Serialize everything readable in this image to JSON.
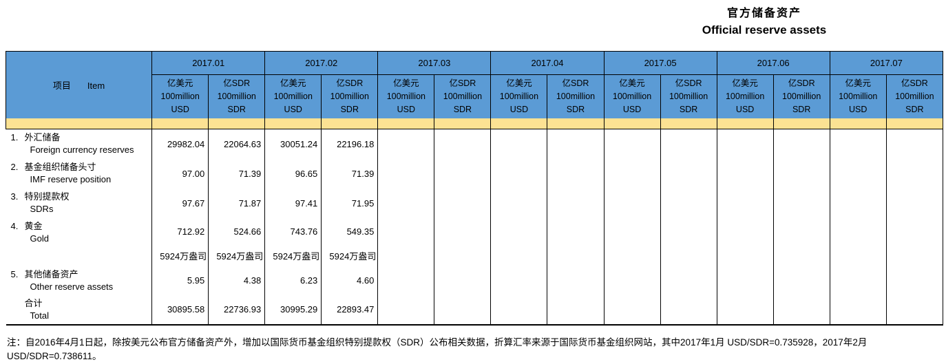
{
  "title": {
    "cn": "官方储备资产",
    "en": "Official reserve assets"
  },
  "table": {
    "item_header": {
      "cn": "项目",
      "en": "Item"
    },
    "months": [
      {
        "label": "2017.01",
        "usd_header": "亿美元\n100million\nUSD",
        "sdr_header": "亿SDR\n100million\nSDR"
      },
      {
        "label": "2017.02",
        "usd_header": "亿美元\n100million\nUSD",
        "sdr_header": "亿SDR\n100million\nSDR"
      },
      {
        "label": "2017.03",
        "usd_header": "亿美元\n100million\nUSD",
        "sdr_header": "亿SDR\n100million\nSDR"
      },
      {
        "label": "2017.04",
        "usd_header": "亿美元\n100million\nUSD",
        "sdr_header": "亿SDR\n100million\nSDR"
      },
      {
        "label": "2017.05",
        "usd_header": "亿美元\n100million\nUSD",
        "sdr_header": "亿SDR\n100million\nSDR"
      },
      {
        "label": "2017.06",
        "usd_header": "亿美元\n100million\nUSD",
        "sdr_header": "亿SDR\n100million\nSDR"
      },
      {
        "label": "2017.07",
        "usd_header": "亿美元\n100million\nUSD",
        "sdr_header": "亿SDR\n100million\nSDR"
      }
    ]
  },
  "rows": [
    {
      "type": "item",
      "num": "1.",
      "cn": "外汇储备",
      "en": "Foreign currency reserves",
      "values": [
        "29982.04",
        "22064.63",
        "30051.24",
        "22196.18",
        "",
        "",
        "",
        "",
        "",
        "",
        "",
        "",
        "",
        ""
      ]
    },
    {
      "type": "item",
      "num": "2.",
      "cn": "基金组织储备头寸",
      "en": "IMF reserve position",
      "values": [
        "97.00",
        "71.39",
        "96.65",
        "71.39",
        "",
        "",
        "",
        "",
        "",
        "",
        "",
        "",
        "",
        ""
      ]
    },
    {
      "type": "item",
      "num": "3.",
      "cn": "特别提款权",
      "en": "SDRs",
      "values": [
        "97.67",
        "71.87",
        "97.41",
        "71.95",
        "",
        "",
        "",
        "",
        "",
        "",
        "",
        "",
        "",
        ""
      ]
    },
    {
      "type": "item",
      "num": "4.",
      "cn": "黄金",
      "en": "Gold",
      "values": [
        "712.92",
        "524.66",
        "743.76",
        "549.35",
        "",
        "",
        "",
        "",
        "",
        "",
        "",
        "",
        "",
        ""
      ]
    },
    {
      "type": "qty",
      "num": "",
      "cn": "",
      "en": "",
      "values": [
        "5924万盎司",
        "5924万盎司",
        "5924万盎司",
        "5924万盎司",
        "",
        "",
        "",
        "",
        "",
        "",
        "",
        "",
        "",
        ""
      ]
    },
    {
      "type": "item",
      "num": "5.",
      "cn": "其他储备资产",
      "en": "Other reserve assets",
      "values": [
        "5.95",
        "4.38",
        "6.23",
        "4.60",
        "",
        "",
        "",
        "",
        "",
        "",
        "",
        "",
        "",
        ""
      ]
    },
    {
      "type": "total",
      "num": "",
      "cn": "合计",
      "en": "Total",
      "values": [
        "30895.58",
        "22736.93",
        "30995.29",
        "22893.47",
        "",
        "",
        "",
        "",
        "",
        "",
        "",
        "",
        "",
        ""
      ]
    }
  ],
  "note": "注：自2016年4月1日起，除按美元公布官方储备资产外，增加以国际货币基金组织特别提款权（SDR）公布相关数据，折算汇率来源于国际货币基金组织网站，其中2017年1月 USD/SDR=0.735928，2017年2月 USD/SDR=0.738611。"
}
